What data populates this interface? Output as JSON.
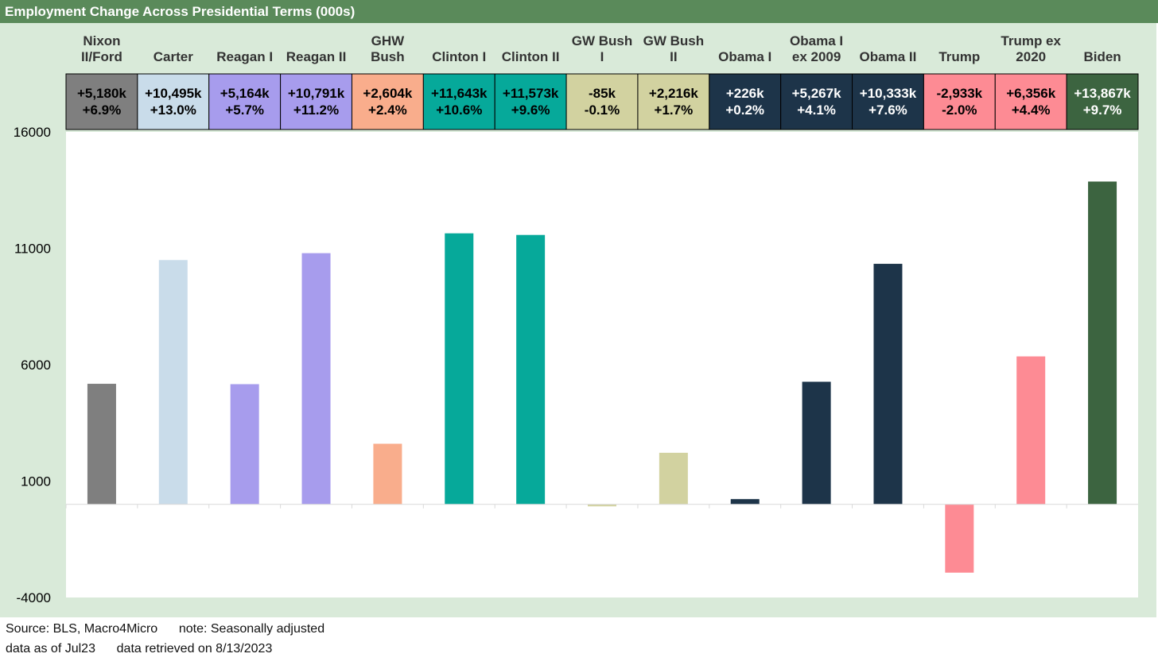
{
  "chart_data": {
    "type": "bar",
    "title": "Employment Change Across Presidential Terms (000s)",
    "categories": [
      [
        "Nixon",
        "II/Ford"
      ],
      [
        "Carter"
      ],
      [
        "Reagan I"
      ],
      [
        "Reagan II"
      ],
      [
        "GHW",
        "Bush"
      ],
      [
        "Clinton I"
      ],
      [
        "Clinton II"
      ],
      [
        "GW Bush",
        "I"
      ],
      [
        "GW Bush",
        "II"
      ],
      [
        "Obama I"
      ],
      [
        "Obama I",
        "ex 2009"
      ],
      [
        "Obama II"
      ],
      [
        "Trump"
      ],
      [
        "Trump ex",
        "2020"
      ],
      [
        "Biden"
      ]
    ],
    "values": [
      5180,
      10495,
      5164,
      10791,
      2604,
      11643,
      11573,
      -85,
      2216,
      226,
      5267,
      10333,
      -2933,
      6356,
      13867
    ],
    "summary_change": [
      "+5,180k",
      "+10,495k",
      "+5,164k",
      "+10,791k",
      "+2,604k",
      "+11,643k",
      "+11,573k",
      "-85k",
      "+2,216k",
      "+226k",
      "+5,267k",
      "+10,333k",
      "-2,933k",
      "+6,356k",
      "+13,867k"
    ],
    "summary_pct": [
      "+6.9%",
      "+13.0%",
      "+5.7%",
      "+11.2%",
      "+2.4%",
      "+10.6%",
      "+9.6%",
      "-0.1%",
      "+1.7%",
      "+0.2%",
      "+4.1%",
      "+7.6%",
      "-2.0%",
      "+4.4%",
      "+9.7%"
    ],
    "bar_colors": [
      "#7f7f7f",
      "#c9dcea",
      "#a79ced",
      "#a79ced",
      "#f9ad8c",
      "#06a99a",
      "#06a99a",
      "#d2d2a0",
      "#d2d2a0",
      "#1d3449",
      "#1d3449",
      "#1d3449",
      "#fd8b94",
      "#fd8b94",
      "#3c6440"
    ],
    "box_colors": [
      "#7f7f7f",
      "#c9dcea",
      "#a79ced",
      "#a79ced",
      "#f9ad8c",
      "#06a99a",
      "#06a99a",
      "#d2d2a0",
      "#d2d2a0",
      "#1d3449",
      "#1d3449",
      "#1d3449",
      "#fd8b94",
      "#fd8b94",
      "#3c6440"
    ],
    "box_text_colors": [
      "#000000",
      "#000000",
      "#000000",
      "#000000",
      "#000000",
      "#000000",
      "#000000",
      "#000000",
      "#000000",
      "#ffffff",
      "#ffffff",
      "#ffffff",
      "#000000",
      "#000000",
      "#ffffff"
    ],
    "yticks": [
      16000,
      11000,
      6000,
      1000,
      -4000
    ],
    "ylim": [
      -4000,
      16000
    ],
    "xlabel": "",
    "ylabel": "",
    "grid": false
  },
  "footer": {
    "line1": "Source: BLS, Macro4Micro      note: Seasonally adjusted",
    "line2": "data as of Jul23      data retrieved on 8/13/2023"
  },
  "colors": {
    "title_bar": "#5a8a5a",
    "frame_bg": "#d9ead9",
    "plot_bg": "#ffffff"
  }
}
